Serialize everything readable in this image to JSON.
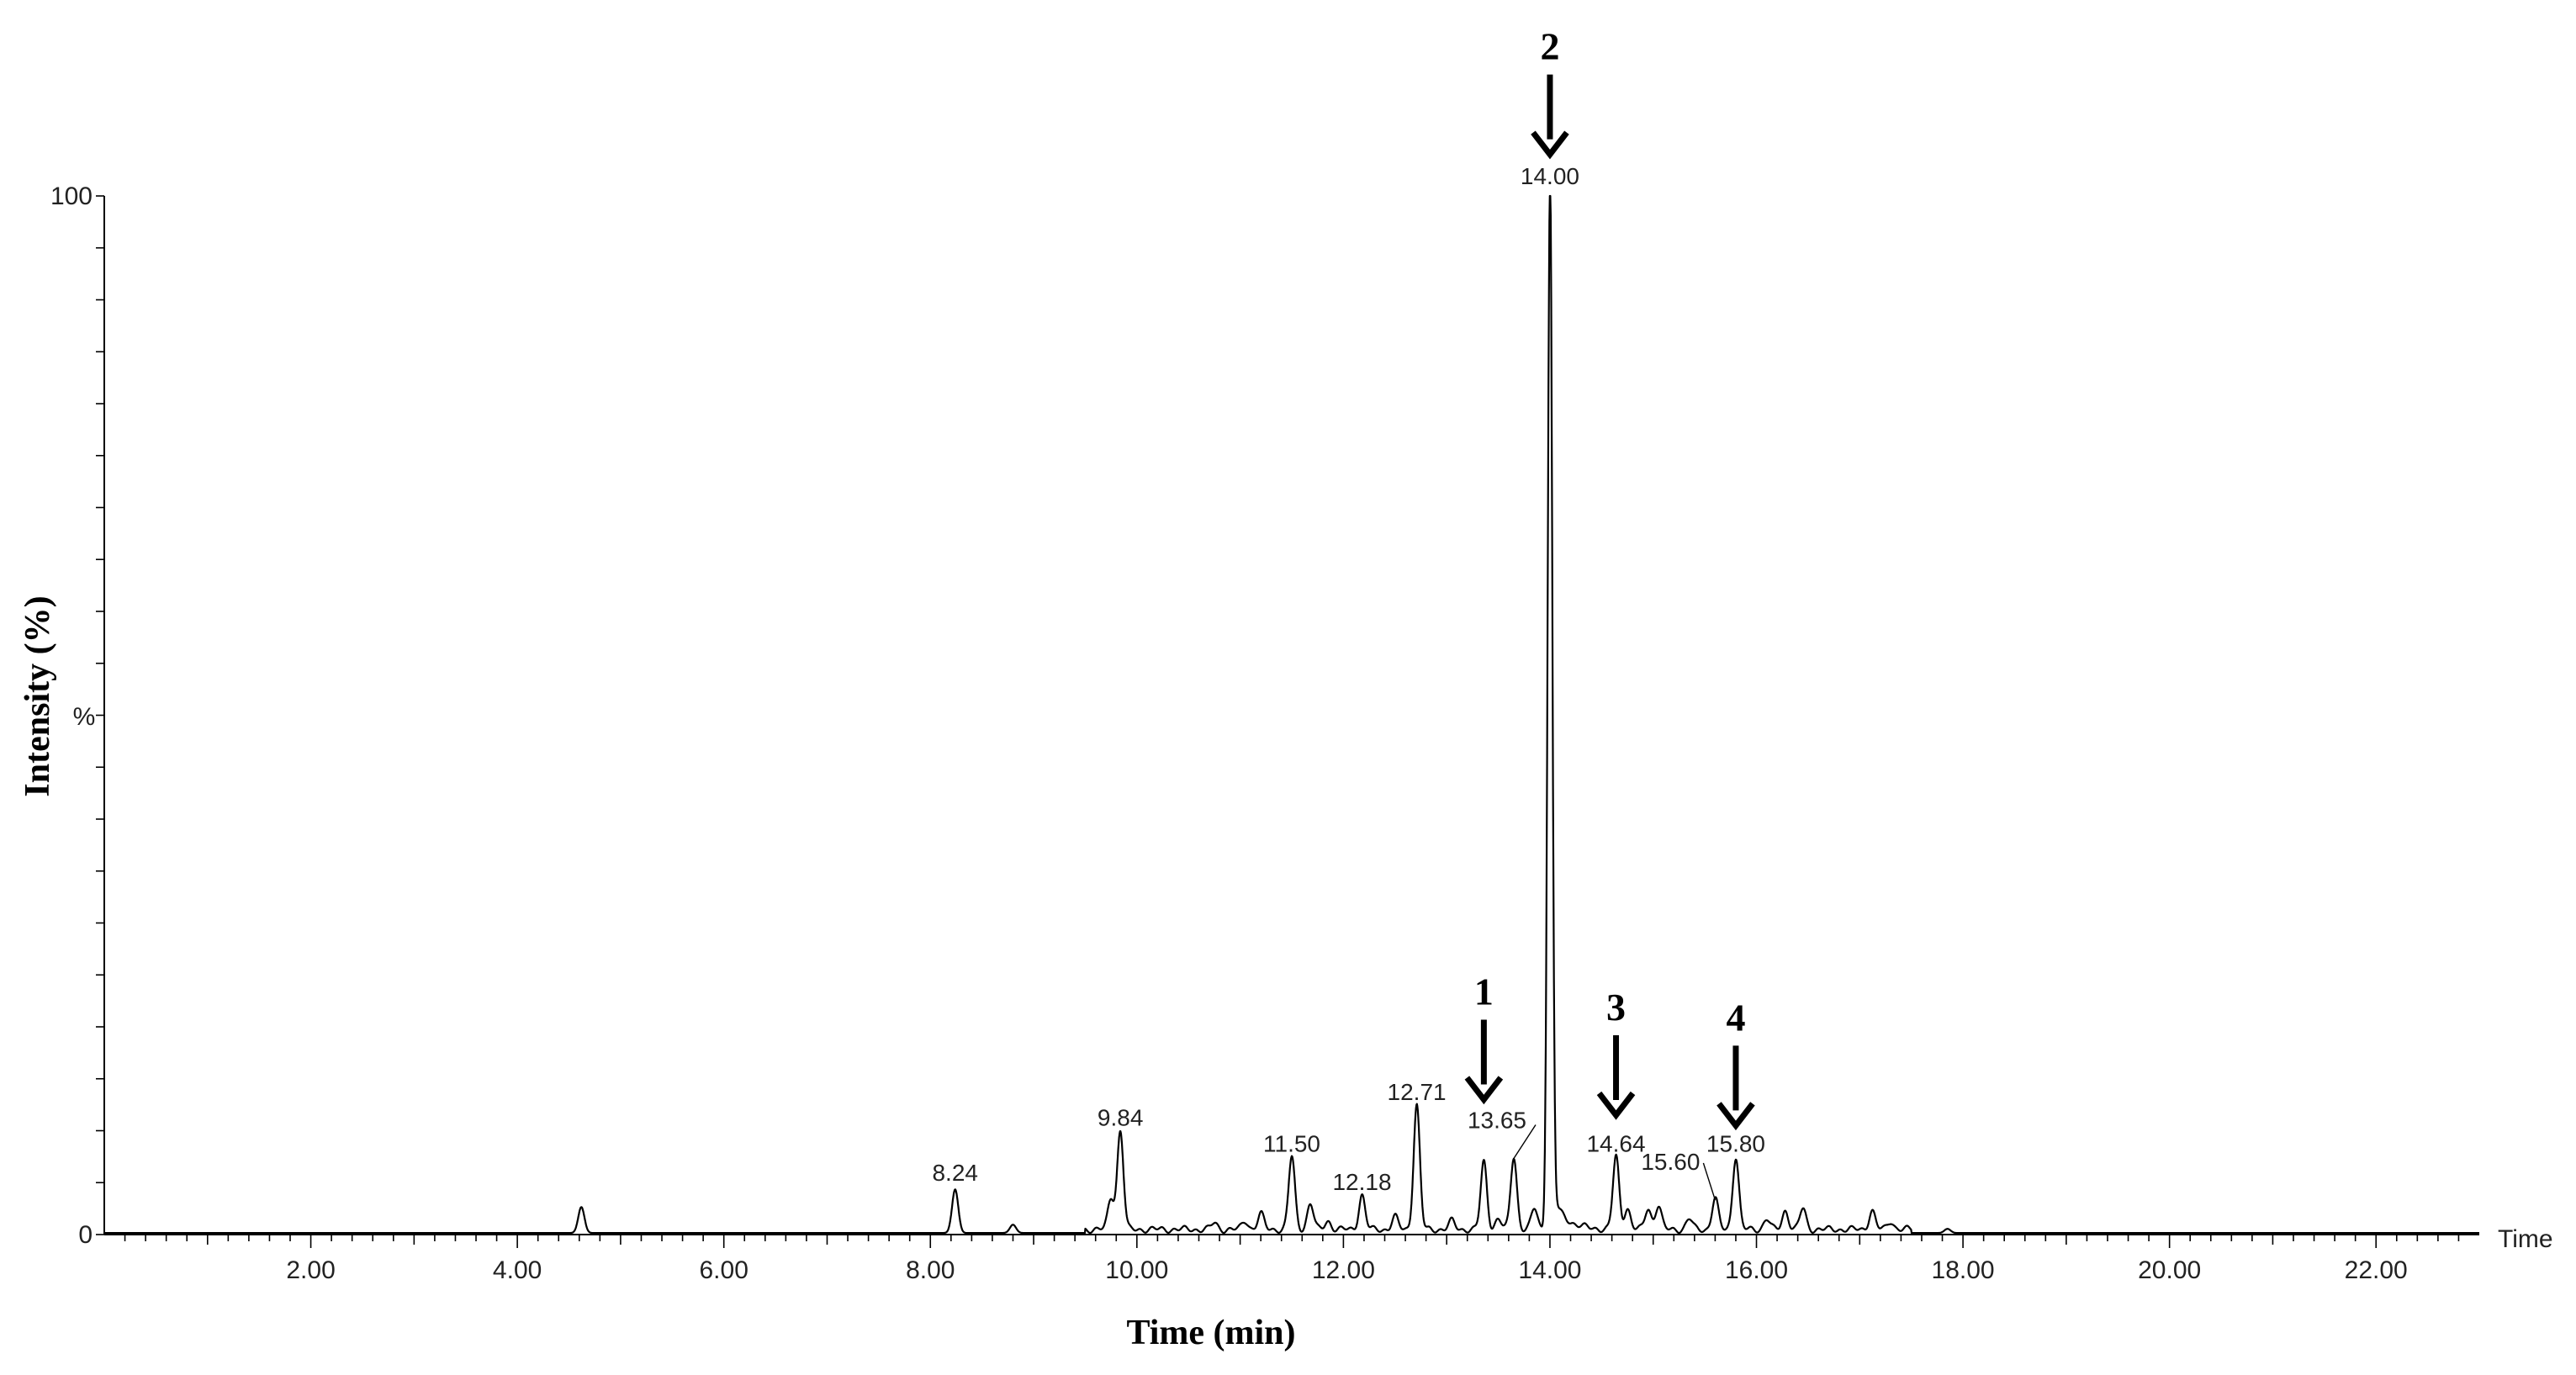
{
  "chart_data": {
    "type": "line",
    "xlabel": "Time (min)",
    "ylabel": "Intensity (%)",
    "x_axis_end_label": "Time",
    "y_axis_mid_label": "%",
    "xlim": [
      0,
      23
    ],
    "ylim": [
      0,
      100
    ],
    "x_ticks": [
      2,
      4,
      6,
      8,
      10,
      12,
      14,
      16,
      18,
      20,
      22
    ],
    "x_tick_labels": [
      "2.00",
      "4.00",
      "6.00",
      "8.00",
      "10.00",
      "12.00",
      "14.00",
      "16.00",
      "18.00",
      "20.00",
      "22.00"
    ],
    "y_ticks": [
      0,
      100
    ],
    "y_tick_labels": [
      "0",
      "100"
    ],
    "grid": false,
    "peaks": [
      {
        "t": 4.62,
        "h": 2.5
      },
      {
        "t": 8.24,
        "h": 4.2,
        "label": "8.24"
      },
      {
        "t": 8.8,
        "h": 0.8
      },
      {
        "t": 9.75,
        "h": 3.0
      },
      {
        "t": 9.84,
        "h": 9.5,
        "label": "9.84"
      },
      {
        "t": 10.75,
        "h": 0.6
      },
      {
        "t": 11.05,
        "h": 0.8
      },
      {
        "t": 11.2,
        "h": 1.5
      },
      {
        "t": 11.5,
        "h": 7.0,
        "label": "11.50"
      },
      {
        "t": 11.68,
        "h": 2.5
      },
      {
        "t": 11.85,
        "h": 0.8
      },
      {
        "t": 12.18,
        "h": 3.3,
        "label": "12.18"
      },
      {
        "t": 12.5,
        "h": 1.2
      },
      {
        "t": 12.71,
        "h": 12.0,
        "label": "12.71"
      },
      {
        "t": 13.05,
        "h": 0.8
      },
      {
        "t": 13.36,
        "h": 6.5
      },
      {
        "t": 13.5,
        "h": 1.0
      },
      {
        "t": 13.65,
        "h": 7.0,
        "label": "13.65"
      },
      {
        "t": 13.85,
        "h": 2.0
      },
      {
        "t": 14.0,
        "h": 100.0,
        "label": "14.00"
      },
      {
        "t": 14.64,
        "h": 7.0,
        "label": "14.64"
      },
      {
        "t": 14.75,
        "h": 2.0
      },
      {
        "t": 14.95,
        "h": 2.0
      },
      {
        "t": 15.05,
        "h": 2.3
      },
      {
        "t": 15.35,
        "h": 1.0
      },
      {
        "t": 15.6,
        "h": 3.0,
        "label": "15.60"
      },
      {
        "t": 15.8,
        "h": 7.0,
        "label": "15.80"
      },
      {
        "t": 16.1,
        "h": 1.0
      },
      {
        "t": 16.28,
        "h": 1.8
      },
      {
        "t": 16.45,
        "h": 2.0
      },
      {
        "t": 17.12,
        "h": 1.8
      },
      {
        "t": 17.3,
        "h": 0.8
      },
      {
        "t": 17.85,
        "h": 0.4
      }
    ],
    "annotations": [
      {
        "label": "1",
        "t": 13.36,
        "h": 13.0
      },
      {
        "label": "2",
        "t": 14.0,
        "h": 104.0
      },
      {
        "label": "3",
        "t": 14.64,
        "h": 11.5
      },
      {
        "label": "4",
        "t": 15.8,
        "h": 10.5
      }
    ]
  },
  "colors": {
    "trace": "#000000",
    "axis": "#000000",
    "text": "#222222"
  }
}
